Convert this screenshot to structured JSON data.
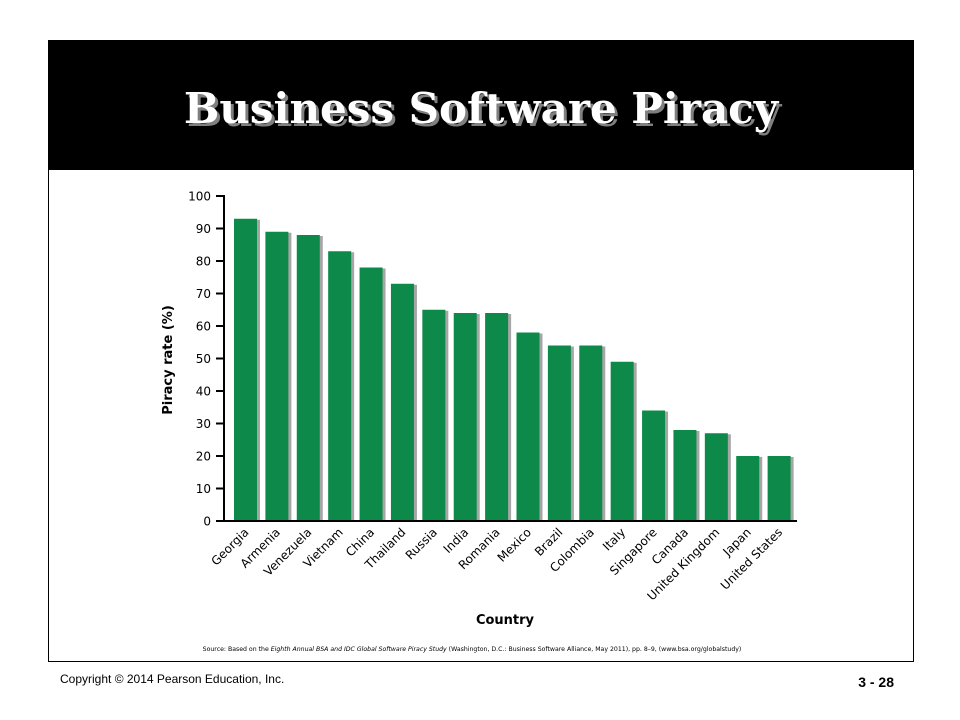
{
  "slide": {
    "title": "Business Software Piracy",
    "copyright": "Copyright © 2014 Pearson Education, Inc.",
    "page_number": "3 - 28"
  },
  "colors": {
    "bar": "#0d8a4a",
    "bar_shadow": "#a6a6a6",
    "title_bg": "#000000"
  },
  "chart_data": {
    "type": "bar",
    "title": "",
    "xlabel": "Country",
    "ylabel": "Piracy rate (%)",
    "ylim": [
      0,
      100
    ],
    "yticks": [
      0,
      10,
      20,
      30,
      40,
      50,
      60,
      70,
      80,
      90,
      100
    ],
    "grid": false,
    "categories": [
      "Georgia",
      "Armenia",
      "Venezuela",
      "Vietnam",
      "China",
      "Thailand",
      "Russia",
      "India",
      "Romania",
      "Mexico",
      "Brazil",
      "Colombia",
      "Italy",
      "Singapore",
      "Canada",
      "United Kingdom",
      "Japan",
      "United States"
    ],
    "values": [
      93,
      89,
      88,
      83,
      78,
      73,
      65,
      64,
      64,
      58,
      54,
      54,
      49,
      34,
      28,
      27,
      20,
      20
    ],
    "source_prefix": "Source: Based on the ",
    "source_italic": "Eighth Annual BSA and IDC Global Software Piracy Study",
    "source_suffix": " (Washington, D.C.: Business Software Alliance, May 2011), pp. 8–9, (www.bsa.org/globalstudy)"
  }
}
